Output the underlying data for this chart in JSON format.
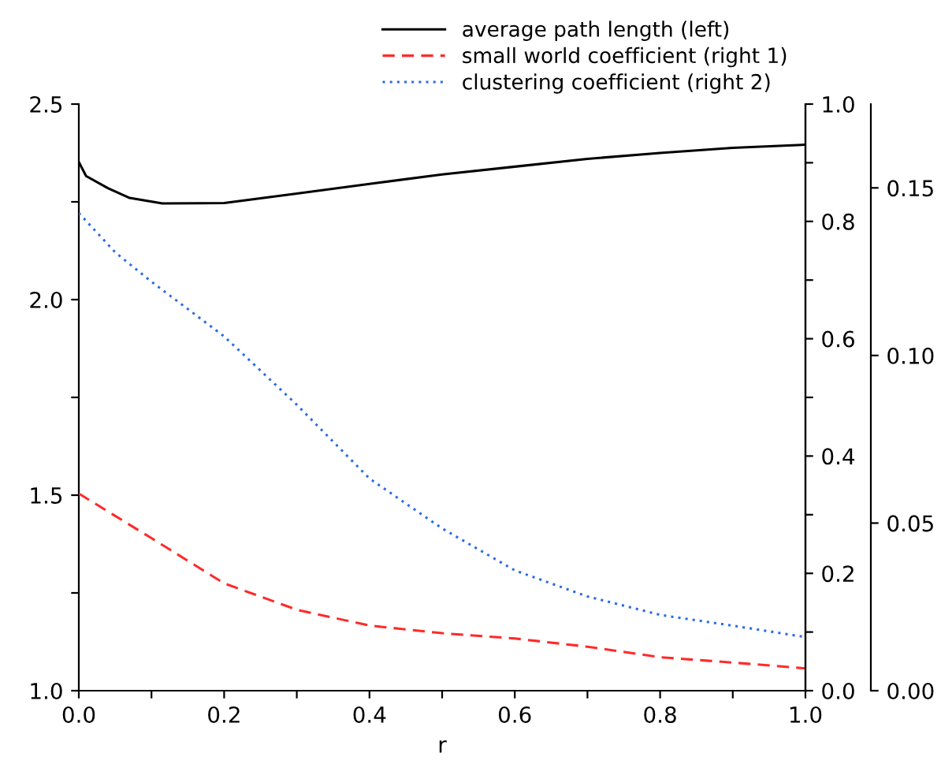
{
  "chart_data": {
    "type": "line",
    "xlabel": "r",
    "x": [
      0.0,
      0.01,
      0.04,
      0.07,
      0.115,
      0.2,
      0.3,
      0.4,
      0.5,
      0.6,
      0.7,
      0.8,
      0.9,
      1.0
    ],
    "series": [
      {
        "name": "average path length (left)",
        "color": "#000000",
        "line_style": "solid",
        "axis": "y",
        "values": [
          2.352,
          2.316,
          2.285,
          2.26,
          2.246,
          2.247,
          2.271,
          2.296,
          2.32,
          2.34,
          2.36,
          2.375,
          2.388,
          2.396
        ]
      },
      {
        "name": "small world coefficient (right 1)",
        "color": "#ff2a2a",
        "line_style": "dashed",
        "axis": "y2",
        "x": [
          0.0,
          0.1,
          0.2,
          0.3,
          0.4,
          0.5,
          0.6,
          0.7,
          0.8,
          0.9,
          1.0
        ],
        "values": [
          0.336,
          0.26,
          0.183,
          0.138,
          0.111,
          0.098,
          0.089,
          0.075,
          0.057,
          0.048,
          0.038
        ]
      },
      {
        "name": "clustering coefficient (right 2)",
        "color": "#2a6ae8",
        "line_style": "dotted",
        "axis": "y3",
        "x": [
          0.0,
          0.05,
          0.1,
          0.2,
          0.3,
          0.4,
          0.5,
          0.6,
          0.7,
          0.8,
          0.9,
          1.0
        ],
        "values": [
          0.1425,
          0.1308,
          0.122,
          0.1057,
          0.0853,
          0.0633,
          0.0484,
          0.0359,
          0.0281,
          0.0226,
          0.0194,
          0.016
        ]
      }
    ],
    "xlim": [
      0.0,
      1.0
    ],
    "xticks": [
      {
        "value": 0.0,
        "label": "0.0"
      },
      {
        "value": 0.1,
        "label": null
      },
      {
        "value": 0.2,
        "label": "0.2"
      },
      {
        "value": 0.3,
        "label": null
      },
      {
        "value": 0.4,
        "label": "0.4"
      },
      {
        "value": 0.5,
        "label": null
      },
      {
        "value": 0.6,
        "label": "0.6"
      },
      {
        "value": 0.7,
        "label": null
      },
      {
        "value": 0.8,
        "label": "0.8"
      },
      {
        "value": 0.9,
        "label": null
      },
      {
        "value": 1.0,
        "label": "1.0"
      }
    ],
    "ylim": [
      1.0,
      2.5
    ],
    "yticks": [
      {
        "value": 1.0,
        "label": "1.0"
      },
      {
        "value": 1.25,
        "label": null
      },
      {
        "value": 1.5,
        "label": "1.5"
      },
      {
        "value": 1.75,
        "label": null
      },
      {
        "value": 2.0,
        "label": "2.0"
      },
      {
        "value": 2.25,
        "label": null
      },
      {
        "value": 2.5,
        "label": "2.5"
      }
    ],
    "y2lim": [
      0.0,
      1.0
    ],
    "y2ticks": [
      {
        "value": 0.0,
        "label": "0.0"
      },
      {
        "value": 0.1,
        "label": null
      },
      {
        "value": 0.2,
        "label": "0.2"
      },
      {
        "value": 0.3,
        "label": null
      },
      {
        "value": 0.4,
        "label": "0.4"
      },
      {
        "value": 0.5,
        "label": null
      },
      {
        "value": 0.6,
        "label": "0.6"
      },
      {
        "value": 0.7,
        "label": null
      },
      {
        "value": 0.8,
        "label": "0.8"
      },
      {
        "value": 0.9,
        "label": null
      },
      {
        "value": 1.0,
        "label": "1.0"
      }
    ],
    "y3lim": [
      0.0,
      0.175
    ],
    "y3ticks": [
      {
        "value": 0.0,
        "label": "0.00"
      },
      {
        "value": 0.05,
        "label": "0.05"
      },
      {
        "value": 0.1,
        "label": "0.10"
      },
      {
        "value": 0.15,
        "label": "0.15"
      }
    ],
    "legend": "top",
    "grid": false
  }
}
